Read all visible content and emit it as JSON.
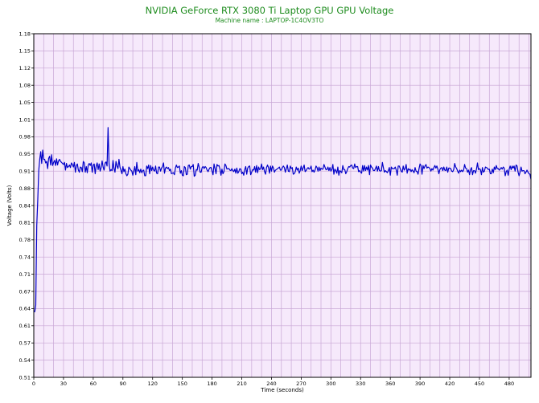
{
  "chart_data": {
    "type": "line",
    "title": "NVIDIA GeForce RTX 3080 Ti Laptop GPU GPU Voltage",
    "subtitle": "Machine name : LAPTOP-1C4OV3TO",
    "xlabel": "Time (seconds)",
    "ylabel": "Voltage (Volts)",
    "xlim": [
      0,
      502
    ],
    "ylim": [
      0.51,
      1.18
    ],
    "x_ticks": [
      "0",
      "30",
      "60",
      "90",
      "120",
      "150",
      "180",
      "210",
      "240",
      "270",
      "300",
      "330",
      "360",
      "390",
      "420",
      "450",
      "480"
    ],
    "y_ticks": [
      "0.51",
      "0.54",
      "0.57",
      "0.61",
      "0.64",
      "0.67",
      "0.71",
      "0.74",
      "0.78",
      "0.81",
      "0.84",
      "0.88",
      "0.91",
      "0.95",
      "0.98",
      "1.01",
      "1.05",
      "1.08",
      "1.12",
      "1.15",
      "1.18"
    ],
    "grid": true,
    "series": [
      {
        "color": "#0000c8",
        "x": [
          0,
          1,
          2,
          3,
          4,
          5,
          6,
          7,
          8,
          9,
          10,
          11,
          12,
          13,
          14,
          15,
          16,
          17,
          18,
          19,
          20,
          21,
          22,
          23,
          24,
          25,
          26,
          27,
          28,
          29,
          30,
          31,
          32,
          33,
          34,
          35,
          36,
          37,
          38,
          39,
          40,
          41,
          42,
          43,
          44,
          45,
          46,
          47,
          48,
          49,
          50,
          51,
          52,
          53,
          54,
          55,
          56,
          57,
          58,
          59,
          60,
          61,
          62,
          63,
          64,
          65,
          66,
          67,
          68,
          69,
          70,
          71,
          72,
          73,
          74,
          75,
          76,
          77,
          78,
          79,
          80,
          81,
          82,
          83,
          84,
          85,
          86,
          87,
          88,
          89,
          90,
          91,
          92,
          93,
          94,
          95,
          96,
          97,
          98,
          99,
          100,
          101,
          102,
          103,
          104,
          105,
          106,
          107,
          108,
          109,
          110,
          111,
          112,
          113,
          114,
          115,
          116,
          117,
          118,
          119,
          120,
          121,
          122,
          123,
          124,
          125,
          126,
          127,
          128,
          129,
          130,
          131,
          132,
          133,
          134,
          135,
          136,
          137,
          138,
          139,
          140,
          141,
          142,
          143,
          144,
          145,
          146,
          147,
          148,
          149,
          150,
          151,
          152,
          153,
          154,
          155,
          156,
          157,
          158,
          159,
          160,
          161,
          162,
          163,
          164,
          165,
          166,
          167,
          168,
          169,
          170,
          171,
          172,
          173,
          174,
          175,
          176,
          177,
          178,
          179,
          180,
          181,
          182,
          183,
          184,
          185,
          186,
          187,
          188,
          189,
          190,
          191,
          192,
          193,
          194,
          195,
          196,
          197,
          198,
          199,
          200,
          201,
          202,
          203,
          204,
          205,
          206,
          207,
          208,
          209,
          210,
          211,
          212,
          213,
          214,
          215,
          216,
          217,
          218,
          219,
          220,
          221,
          222,
          223,
          224,
          225,
          226,
          227,
          228,
          229,
          230,
          231,
          232,
          233,
          234,
          235,
          236,
          237,
          238,
          239,
          240,
          241,
          242,
          243,
          244,
          245,
          246,
          247,
          248,
          249,
          250,
          251,
          252,
          253,
          254,
          255,
          256,
          257,
          258,
          259,
          260,
          261,
          262,
          263,
          264,
          265,
          266,
          267,
          268,
          269,
          270,
          271,
          272,
          273,
          274,
          275,
          276,
          277,
          278,
          279,
          280,
          281,
          282,
          283,
          284,
          285,
          286,
          287,
          288,
          289,
          290,
          291,
          292,
          293,
          294,
          295,
          296,
          297,
          298,
          299,
          300,
          301,
          302,
          303,
          304,
          305,
          306,
          307,
          308,
          309,
          310,
          311,
          312,
          313,
          314,
          315,
          316,
          317,
          318,
          319,
          320,
          321,
          322,
          323,
          324,
          325,
          326,
          327,
          328,
          329,
          330,
          331,
          332,
          333,
          334,
          335,
          336,
          337,
          338,
          339,
          340,
          341,
          342,
          343,
          344,
          345,
          346,
          347,
          348,
          349,
          350,
          351,
          352,
          353,
          354,
          355,
          356,
          357,
          358,
          359,
          360,
          361,
          362,
          363,
          364,
          365,
          366,
          367,
          368,
          369,
          370,
          371,
          372,
          373,
          374,
          375,
          376,
          377,
          378,
          379,
          380,
          381,
          382,
          383,
          384,
          385,
          386,
          387,
          388,
          389,
          390,
          391,
          392,
          393,
          394,
          395,
          396,
          397,
          398,
          399,
          400,
          401,
          402,
          403,
          404,
          405,
          406,
          407,
          408,
          409,
          410,
          411,
          412,
          413,
          414,
          415,
          416,
          417,
          418,
          419,
          420,
          421,
          422,
          423,
          424,
          425,
          426,
          427,
          428,
          429,
          430,
          431,
          432,
          433,
          434,
          435,
          436,
          437,
          438,
          439,
          440,
          441,
          442,
          443,
          444,
          445,
          446,
          447,
          448,
          449,
          450,
          451,
          452,
          453,
          454,
          455,
          456,
          457,
          458,
          459,
          460,
          461,
          462,
          463,
          464,
          465,
          466,
          467,
          468,
          469,
          470,
          471,
          472,
          473,
          474,
          475,
          476,
          477,
          478,
          479,
          480,
          481,
          482,
          483,
          484,
          485,
          486,
          487,
          488,
          489,
          490,
          491,
          492,
          493,
          494,
          495,
          496,
          497,
          498,
          499,
          500,
          501,
          502
        ],
        "y": [
          0.638,
          0.638,
          0.651,
          0.806,
          0.855,
          0.913,
          0.935,
          0.95,
          0.927,
          0.953,
          0.935,
          0.935,
          0.928,
          0.931,
          0.917,
          0.937,
          0.941,
          0.924,
          0.944,
          0.923,
          0.929,
          0.933,
          0.923,
          0.936,
          0.924,
          0.932,
          0.935,
          0.931,
          0.929,
          0.927,
          0.925,
          0.929,
          0.914,
          0.927,
          0.919,
          0.921,
          0.924,
          0.919,
          0.928,
          0.925,
          0.92,
          0.929,
          0.91,
          0.923,
          0.926,
          0.914,
          0.91,
          0.92,
          0.919,
          0.911,
          0.931,
          0.928,
          0.91,
          0.921,
          0.909,
          0.924,
          0.927,
          0.923,
          0.928,
          0.91,
          0.924,
          0.926,
          0.907,
          0.922,
          0.928,
          0.915,
          0.926,
          0.912,
          0.919,
          0.932,
          0.92,
          0.914,
          0.928,
          0.93,
          0.922,
          0.997,
          0.927,
          0.912,
          0.915,
          0.913,
          0.933,
          0.917,
          0.91,
          0.931,
          0.922,
          0.917,
          0.935,
          0.92,
          0.914,
          0.907,
          0.921,
          0.911,
          0.916,
          0.907,
          0.903,
          0.906,
          0.92,
          0.917,
          0.914,
          0.912,
          0.904,
          0.912,
          0.921,
          0.905,
          0.929,
          0.912,
          0.915,
          0.909,
          0.916,
          0.909,
          0.913,
          0.914,
          0.903,
          0.903,
          0.922,
          0.917,
          0.924,
          0.907,
          0.923,
          0.913,
          0.92,
          0.914,
          0.912,
          0.922,
          0.908,
          0.907,
          0.92,
          0.92,
          0.912,
          0.918,
          0.921,
          0.928,
          0.908,
          0.918,
          0.92,
          0.917,
          0.919,
          0.913,
          0.916,
          0.907,
          0.908,
          0.909,
          0.905,
          0.918,
          0.924,
          0.919,
          0.92,
          0.922,
          0.908,
          0.913,
          0.904,
          0.903,
          0.921,
          0.919,
          0.905,
          0.906,
          0.923,
          0.924,
          0.916,
          0.921,
          0.921,
          0.925,
          0.902,
          0.904,
          0.915,
          0.914,
          0.927,
          0.92,
          0.91,
          0.91,
          0.919,
          0.921,
          0.917,
          0.921,
          0.919,
          0.914,
          0.911,
          0.916,
          0.919,
          0.919,
          0.912,
          0.905,
          0.926,
          0.917,
          0.907,
          0.925,
          0.922,
          0.923,
          0.916,
          0.904,
          0.916,
          0.907,
          0.911,
          0.926,
          0.923,
          0.916,
          0.917,
          0.917,
          0.914,
          0.913,
          0.917,
          0.913,
          0.911,
          0.916,
          0.908,
          0.918,
          0.908,
          0.911,
          0.917,
          0.916,
          0.907,
          0.91,
          0.904,
          0.915,
          0.921,
          0.906,
          0.918,
          0.921,
          0.922,
          0.905,
          0.91,
          0.915,
          0.914,
          0.921,
          0.91,
          0.923,
          0.909,
          0.92,
          0.915,
          0.917,
          0.926,
          0.915,
          0.92,
          0.911,
          0.906,
          0.919,
          0.924,
          0.919,
          0.908,
          0.922,
          0.912,
          0.922,
          0.918,
          0.91,
          0.914,
          0.915,
          0.917,
          0.918,
          0.92,
          0.914,
          0.914,
          0.919,
          0.922,
          0.919,
          0.91,
          0.917,
          0.924,
          0.912,
          0.911,
          0.922,
          0.917,
          0.919,
          0.906,
          0.907,
          0.911,
          0.92,
          0.914,
          0.918,
          0.908,
          0.913,
          0.922,
          0.913,
          0.918,
          0.924,
          0.911,
          0.913,
          0.917,
          0.919,
          0.916,
          0.917,
          0.922,
          0.911,
          0.914,
          0.91,
          0.914,
          0.922,
          0.919,
          0.912,
          0.92,
          0.913,
          0.918,
          0.916,
          0.916,
          0.925,
          0.92,
          0.915,
          0.915,
          0.92,
          0.913,
          0.919,
          0.912,
          0.915,
          0.925,
          0.906,
          0.916,
          0.913,
          0.908,
          0.92,
          0.904,
          0.913,
          0.911,
          0.909,
          0.923,
          0.915,
          0.915,
          0.907,
          0.911,
          0.917,
          0.921,
          0.92,
          0.923,
          0.924,
          0.918,
          0.917,
          0.926,
          0.919,
          0.921,
          0.921,
          0.911,
          0.913,
          0.91,
          0.908,
          0.923,
          0.912,
          0.923,
          0.913,
          0.92,
          0.914,
          0.923,
          0.905,
          0.924,
          0.92,
          0.918,
          0.913,
          0.913,
          0.917,
          0.922,
          0.912,
          0.921,
          0.913,
          0.912,
          0.913,
          0.929,
          0.919,
          0.91,
          0.913,
          0.911,
          0.909,
          0.913,
          0.919,
          0.904,
          0.92,
          0.917,
          0.917,
          0.917,
          0.92,
          0.914,
          0.904,
          0.922,
          0.922,
          0.917,
          0.912,
          0.91,
          0.922,
          0.914,
          0.917,
          0.925,
          0.908,
          0.917,
          0.914,
          0.916,
          0.911,
          0.915,
          0.912,
          0.909,
          0.919,
          0.912,
          0.911,
          0.906,
          0.917,
          0.926,
          0.923,
          0.906,
          0.923,
          0.917,
          0.922,
          0.925,
          0.918,
          0.92,
          0.919,
          0.917,
          0.912,
          0.917,
          0.914,
          0.919,
          0.923,
          0.918,
          0.922,
          0.916,
          0.907,
          0.915,
          0.918,
          0.919,
          0.913,
          0.92,
          0.914,
          0.913,
          0.92,
          0.91,
          0.918,
          0.918,
          0.917,
          0.912,
          0.911,
          0.915,
          0.927,
          0.92,
          0.917,
          0.912,
          0.908,
          0.914,
          0.911,
          0.914,
          0.911,
          0.914,
          0.925,
          0.918,
          0.917,
          0.91,
          0.914,
          0.905,
          0.915,
          0.919,
          0.905,
          0.913,
          0.913,
          0.908,
          0.916,
          0.928,
          0.915,
          0.917,
          0.915,
          0.905,
          0.919,
          0.91,
          0.912,
          0.92,
          0.919,
          0.918,
          0.915,
          0.916,
          0.907,
          0.907,
          0.916,
          0.909,
          0.92,
          0.915,
          0.923,
          0.917,
          0.917,
          0.914,
          0.916,
          0.919,
          0.916,
          0.92,
          0.918,
          0.903,
          0.911,
          0.914,
          0.904,
          0.916,
          0.922,
          0.915,
          0.922,
          0.918,
          0.922,
          0.912,
          0.924,
          0.922,
          0.91,
          0.903,
          0.91,
          0.92,
          0.912,
          0.913,
          0.913,
          0.907,
          0.91,
          0.914,
          0.91,
          0.907,
          0.906,
          0.896
        ]
      }
    ]
  }
}
